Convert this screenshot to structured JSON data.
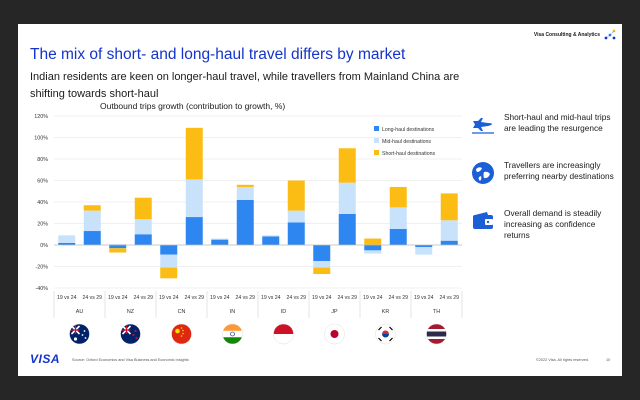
{
  "header": {
    "brand": "Visa Consulting & Analytics",
    "title": "The mix of short- and long-haul travel differs by market",
    "subtitle": "Indian residents are keen on longer-haul travel, while travellers from Mainland China are shifting towards short-haul"
  },
  "chart_data": {
    "type": "bar",
    "stacked": true,
    "title": "Outbound trips growth (contribution to growth, %)",
    "ylim": [
      -40,
      120
    ],
    "yticks": [
      "120%",
      "100%",
      "80%",
      "60%",
      "40%",
      "20%",
      "0%",
      "-20%",
      "-40%"
    ],
    "grid": true,
    "legend_position": "top-right",
    "categories": [
      "19 vs 24",
      "24 vs 29",
      "19 vs 24",
      "24 vs 29",
      "19 vs 24",
      "24 vs 29",
      "19 vs 24",
      "24 vs 29",
      "19 vs 24",
      "24 vs 29",
      "19 vs 24",
      "24 vs 29",
      "19 vs 24",
      "24 vs 29",
      "19 vs 24",
      "24 vs 29"
    ],
    "groups": [
      "AU",
      "NZ",
      "CN",
      "IN",
      "ID",
      "JP",
      "KR",
      "TH"
    ],
    "series": [
      {
        "name": "Long-haul destinations",
        "color": "#2e86f0",
        "values": [
          2,
          13,
          -3,
          10,
          -9,
          26,
          5,
          42,
          8,
          21,
          -15,
          29,
          -5,
          15,
          -2,
          4
        ]
      },
      {
        "name": "Mid-haul destinations",
        "color": "#c9e2fb",
        "values": [
          7,
          19,
          1,
          14,
          -12,
          35,
          1,
          12,
          1,
          11,
          -6,
          29,
          -3,
          20,
          -7,
          19
        ]
      },
      {
        "name": "Short-haul destinations",
        "color": "#fbbd14",
        "values": [
          0,
          5,
          -4,
          20,
          -10,
          48,
          0,
          2,
          0,
          28,
          -6,
          32,
          6,
          19,
          0,
          25
        ]
      }
    ]
  },
  "bullets": [
    {
      "text": "Short-haul and mid-haul trips are leading the resurgence",
      "icon": "airplane-icon"
    },
    {
      "text": "Travellers are increasingly preferring nearby destinations",
      "icon": "globe-icon"
    },
    {
      "text": "Overall demand is steadily increasing as confidence returns",
      "icon": "wallet-icon"
    }
  ],
  "footer": {
    "logo": "VISA",
    "source": "Source: Oxford Economics and Visa Business and Economic Insights",
    "copyright": "©2022 Visa. All rights reserved.",
    "page": "10"
  },
  "colors": {
    "title": "#1434cb",
    "long": "#2e86f0",
    "mid": "#c9e2fb",
    "short": "#fbbd14",
    "icon": "#1a5fd6"
  }
}
